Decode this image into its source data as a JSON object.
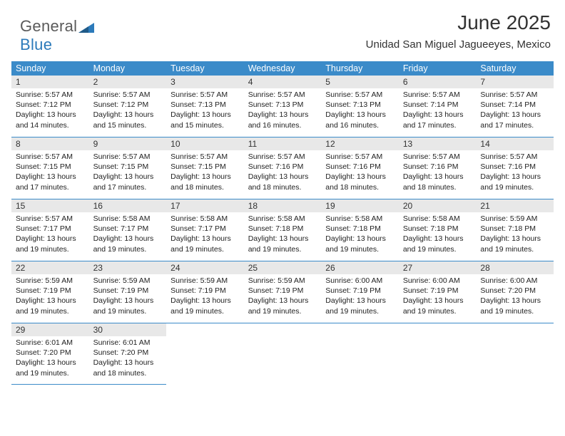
{
  "brand": {
    "part1": "General",
    "part2": "Blue"
  },
  "title": "June 2025",
  "location": "Unidad San Miguel Jagueeyes, Mexico",
  "colors": {
    "header_bg": "#3b8bc9",
    "header_text": "#ffffff",
    "daynum_bg": "#e8e8e8",
    "week_border": "#3b8bc9",
    "brand_gray": "#5a5a5a",
    "brand_blue": "#2c7aba"
  },
  "day_names": [
    "Sunday",
    "Monday",
    "Tuesday",
    "Wednesday",
    "Thursday",
    "Friday",
    "Saturday"
  ],
  "weeks": [
    [
      {
        "n": "1",
        "sr": "5:57 AM",
        "ss": "7:12 PM",
        "dl": "13 hours and 14 minutes."
      },
      {
        "n": "2",
        "sr": "5:57 AM",
        "ss": "7:12 PM",
        "dl": "13 hours and 15 minutes."
      },
      {
        "n": "3",
        "sr": "5:57 AM",
        "ss": "7:13 PM",
        "dl": "13 hours and 15 minutes."
      },
      {
        "n": "4",
        "sr": "5:57 AM",
        "ss": "7:13 PM",
        "dl": "13 hours and 16 minutes."
      },
      {
        "n": "5",
        "sr": "5:57 AM",
        "ss": "7:13 PM",
        "dl": "13 hours and 16 minutes."
      },
      {
        "n": "6",
        "sr": "5:57 AM",
        "ss": "7:14 PM",
        "dl": "13 hours and 17 minutes."
      },
      {
        "n": "7",
        "sr": "5:57 AM",
        "ss": "7:14 PM",
        "dl": "13 hours and 17 minutes."
      }
    ],
    [
      {
        "n": "8",
        "sr": "5:57 AM",
        "ss": "7:15 PM",
        "dl": "13 hours and 17 minutes."
      },
      {
        "n": "9",
        "sr": "5:57 AM",
        "ss": "7:15 PM",
        "dl": "13 hours and 17 minutes."
      },
      {
        "n": "10",
        "sr": "5:57 AM",
        "ss": "7:15 PM",
        "dl": "13 hours and 18 minutes."
      },
      {
        "n": "11",
        "sr": "5:57 AM",
        "ss": "7:16 PM",
        "dl": "13 hours and 18 minutes."
      },
      {
        "n": "12",
        "sr": "5:57 AM",
        "ss": "7:16 PM",
        "dl": "13 hours and 18 minutes."
      },
      {
        "n": "13",
        "sr": "5:57 AM",
        "ss": "7:16 PM",
        "dl": "13 hours and 18 minutes."
      },
      {
        "n": "14",
        "sr": "5:57 AM",
        "ss": "7:16 PM",
        "dl": "13 hours and 19 minutes."
      }
    ],
    [
      {
        "n": "15",
        "sr": "5:57 AM",
        "ss": "7:17 PM",
        "dl": "13 hours and 19 minutes."
      },
      {
        "n": "16",
        "sr": "5:58 AM",
        "ss": "7:17 PM",
        "dl": "13 hours and 19 minutes."
      },
      {
        "n": "17",
        "sr": "5:58 AM",
        "ss": "7:17 PM",
        "dl": "13 hours and 19 minutes."
      },
      {
        "n": "18",
        "sr": "5:58 AM",
        "ss": "7:18 PM",
        "dl": "13 hours and 19 minutes."
      },
      {
        "n": "19",
        "sr": "5:58 AM",
        "ss": "7:18 PM",
        "dl": "13 hours and 19 minutes."
      },
      {
        "n": "20",
        "sr": "5:58 AM",
        "ss": "7:18 PM",
        "dl": "13 hours and 19 minutes."
      },
      {
        "n": "21",
        "sr": "5:59 AM",
        "ss": "7:18 PM",
        "dl": "13 hours and 19 minutes."
      }
    ],
    [
      {
        "n": "22",
        "sr": "5:59 AM",
        "ss": "7:19 PM",
        "dl": "13 hours and 19 minutes."
      },
      {
        "n": "23",
        "sr": "5:59 AM",
        "ss": "7:19 PM",
        "dl": "13 hours and 19 minutes."
      },
      {
        "n": "24",
        "sr": "5:59 AM",
        "ss": "7:19 PM",
        "dl": "13 hours and 19 minutes."
      },
      {
        "n": "25",
        "sr": "5:59 AM",
        "ss": "7:19 PM",
        "dl": "13 hours and 19 minutes."
      },
      {
        "n": "26",
        "sr": "6:00 AM",
        "ss": "7:19 PM",
        "dl": "13 hours and 19 minutes."
      },
      {
        "n": "27",
        "sr": "6:00 AM",
        "ss": "7:19 PM",
        "dl": "13 hours and 19 minutes."
      },
      {
        "n": "28",
        "sr": "6:00 AM",
        "ss": "7:20 PM",
        "dl": "13 hours and 19 minutes."
      }
    ],
    [
      {
        "n": "29",
        "sr": "6:01 AM",
        "ss": "7:20 PM",
        "dl": "13 hours and 19 minutes."
      },
      {
        "n": "30",
        "sr": "6:01 AM",
        "ss": "7:20 PM",
        "dl": "13 hours and 18 minutes."
      },
      null,
      null,
      null,
      null,
      null
    ]
  ],
  "labels": {
    "sunrise": "Sunrise:",
    "sunset": "Sunset:",
    "daylight": "Daylight:"
  }
}
